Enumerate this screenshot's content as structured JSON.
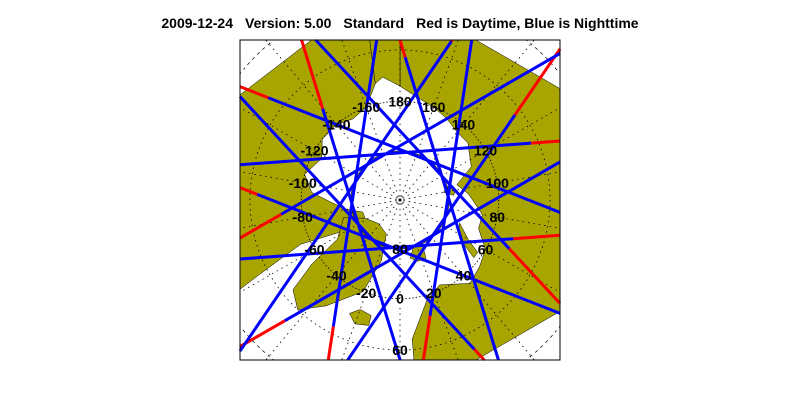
{
  "title": {
    "date": "2009-12-24",
    "version": "Version: 5.00",
    "product": "Standard",
    "legend": "Red is Daytime, Blue is Nighttime"
  },
  "map": {
    "projection": "north-polar-stereographic",
    "center": "North Pole",
    "min_latitude_shown": 55,
    "longitude_labels": [
      "0",
      "20",
      "40",
      "60",
      "80",
      "100",
      "120",
      "140",
      "160",
      "180",
      "-160",
      "-140",
      "-120",
      "-100",
      "-80",
      "-60",
      "-40",
      "-20"
    ],
    "latitude_labels": [
      "80",
      "60"
    ],
    "graticule": "dotted, every 20° longitude and 10° latitude"
  },
  "colors": {
    "land": "#a9a500",
    "ocean": "#ffffff",
    "daytime_track": "#ff0000",
    "nighttime_track": "#0000ff",
    "grid": "#000000"
  }
}
